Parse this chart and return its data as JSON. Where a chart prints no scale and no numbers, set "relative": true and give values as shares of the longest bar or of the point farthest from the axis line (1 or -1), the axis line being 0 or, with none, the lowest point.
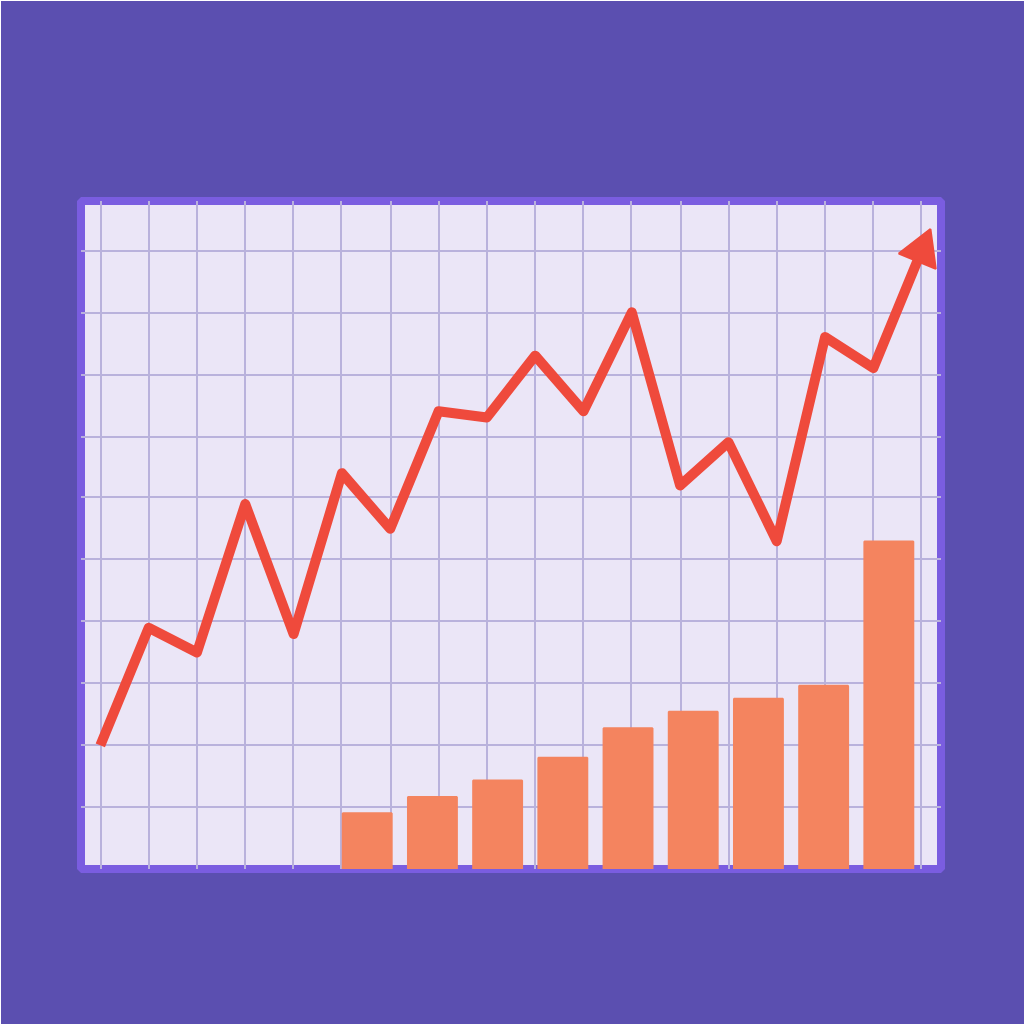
{
  "chart_data": [
    {
      "type": "bar",
      "relative": true,
      "categories": [
        null,
        null,
        null,
        null,
        null,
        null,
        null,
        null,
        null
      ],
      "color": "#f4845f",
      "values": [
        0.17,
        0.22,
        0.27,
        0.34,
        0.43,
        0.48,
        0.52,
        0.56,
        1.0
      ]
    },
    {
      "type": "line",
      "relative": true,
      "grid": true,
      "categories": [
        null,
        null,
        null,
        null,
        null,
        null,
        null,
        null,
        null,
        null,
        null,
        null,
        null,
        null,
        null,
        null,
        null,
        null
      ],
      "color": "#ef4a3c",
      "values": [
        0.2,
        0.39,
        0.35,
        0.59,
        0.38,
        0.64,
        0.55,
        0.74,
        0.73,
        0.83,
        0.74,
        0.9,
        0.62,
        0.69,
        0.53,
        0.86,
        0.81,
        1.0
      ]
    }
  ]
}
